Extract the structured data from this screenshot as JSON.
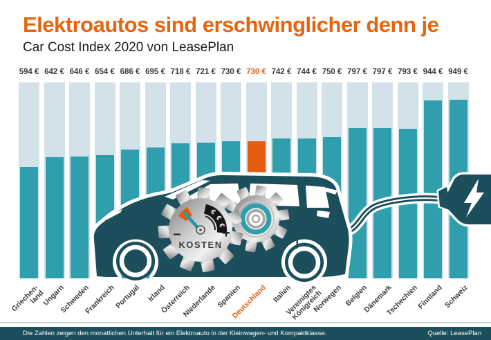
{
  "title": "Elektroautos sind erschwinglicher denn je",
  "subtitle": "Car Cost Index 2020 von LeasePlan",
  "footer": {
    "note": "Die Zahlen zeigen den monatlichen Unterhalt für ein Elektroauto in der Kleinwagen- und Kompaktklasse.",
    "source": "Quelle: LeasePlan"
  },
  "colors": {
    "title_orange": "#E8650F",
    "accent_orange": "#E45C0E",
    "bar_teal": "#2F9EAD",
    "bar_background": "#D3E2E9",
    "dark_teal": "#1D4E5C",
    "text_dark": "#3A3A3A",
    "footer_text": "#FFFFFF"
  },
  "chart_data": {
    "type": "bar",
    "title": "Elektroautos sind erschwinglicher denn je",
    "subtitle": "Car Cost Index 2020 von LeasePlan",
    "unit": "€",
    "categories": [
      "Griechen-\nland",
      "Ungarn",
      "Schweden",
      "Frankreich",
      "Portugal",
      "Irland",
      "Österreich",
      "Niederlande",
      "Spanien",
      "Deutschland",
      "Italien",
      "Vereinigtes\nKönigreich",
      "Norwegen",
      "Belgien",
      "Dänemark",
      "Tschechien",
      "Finnland",
      "Schweiz"
    ],
    "values": [
      594,
      642,
      646,
      654,
      686,
      695,
      718,
      721,
      730,
      730,
      742,
      744,
      750,
      797,
      797,
      793,
      944,
      949
    ],
    "value_labels": [
      "594 €",
      "642 €",
      "646 €",
      "654 €",
      "686 €",
      "695 €",
      "718 €",
      "721 €",
      "730 €",
      "730 €",
      "742 €",
      "744 €",
      "750 €",
      "797 €",
      "797 €",
      "793 €",
      "944 €",
      "949 €"
    ],
    "highlight_index": 9,
    "highlight_category": "Deutschland",
    "xlabel": "",
    "ylabel": "",
    "ylim": [
      0,
      960
    ],
    "grid": false,
    "legend": false
  },
  "illustration": {
    "gauge_label": "KOSTEN",
    "gauge_minus": "–",
    "gauge_plus": "+",
    "coin_symbol": "€"
  }
}
